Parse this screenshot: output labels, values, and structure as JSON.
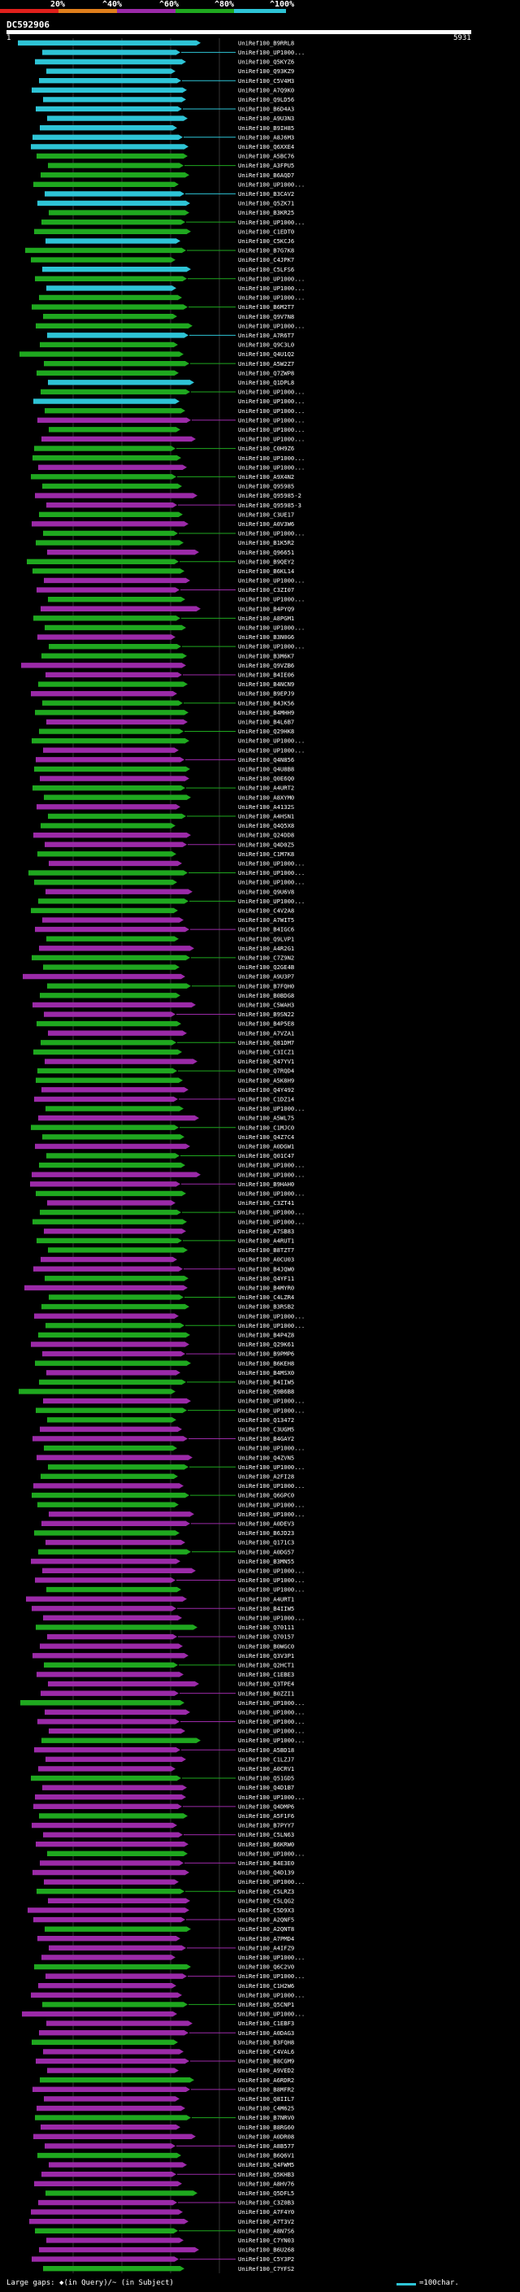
{
  "legend": {
    "labels": [
      "20%",
      "^40%",
      "^60%",
      "^80%",
      "^100%"
    ],
    "colors": [
      "#e0201c",
      "#e07f1c",
      "#9b2aa8",
      "#1fa81f",
      "#2ec4d6"
    ]
  },
  "query": {
    "name": "DC592906",
    "start": "1",
    "end": "5931"
  },
  "hits": [
    {
      "id": "UniRef100_B9RRL8"
    },
    {
      "id": "UniRef100_UP1000..."
    },
    {
      "id": "UniRef100_Q5KYZ6"
    },
    {
      "id": "UniRef100_Q93KZ9"
    },
    {
      "id": "UniRef100_C5V4M3"
    },
    {
      "id": "UniRef100_A7Q9K0"
    },
    {
      "id": "UniRef100_Q9LD56"
    },
    {
      "id": "UniRef100_B6D4A3"
    },
    {
      "id": "UniRef100_A9U3N3"
    },
    {
      "id": "UniRef100_B9IH85"
    },
    {
      "id": "UniRef100_A8J6M3"
    },
    {
      "id": "UniRef100_Q6XXE4"
    },
    {
      "id": "UniRef100_A5BC76"
    },
    {
      "id": "UniRef100_A3FPU5"
    },
    {
      "id": "UniRef100_B6AQD7"
    },
    {
      "id": "UniRef100_UP1000..."
    },
    {
      "id": "UniRef100_B3CAV2"
    },
    {
      "id": "UniRef100_Q5ZK71"
    },
    {
      "id": "UniRef100_B3KR25"
    },
    {
      "id": "UniRef100_UP1000..."
    },
    {
      "id": "UniRef100_C1EDT0"
    },
    {
      "id": "UniRef100_C5KCJ6"
    },
    {
      "id": "UniRef100_B7G7K8"
    },
    {
      "id": "UniRef100_C4JPK7"
    },
    {
      "id": "UniRef100_C5LFS6"
    },
    {
      "id": "UniRef100_UP1000..."
    },
    {
      "id": "UniRef100_UP1000..."
    },
    {
      "id": "UniRef100_UP1000..."
    },
    {
      "id": "UniRef100_B6M2T7"
    },
    {
      "id": "UniRef100_Q9V7N8"
    },
    {
      "id": "UniRef100_UP1000..."
    },
    {
      "id": "UniRef100_A7R6T7"
    },
    {
      "id": "UniRef100_Q9C3L0"
    },
    {
      "id": "UniRef100_Q4U1Q2"
    },
    {
      "id": "UniRef100_A5W2Z7"
    },
    {
      "id": "UniRef100_Q7ZWP8"
    },
    {
      "id": "UniRef100_Q1DPL8"
    },
    {
      "id": "UniRef100_UP1000..."
    },
    {
      "id": "UniRef100_UP1000..."
    },
    {
      "id": "UniRef100_UP1000..."
    },
    {
      "id": "UniRef100_UP1000..."
    },
    {
      "id": "UniRef100_UP1000..."
    },
    {
      "id": "UniRef100_UP1000..."
    },
    {
      "id": "UniRef100_C0H9Z6"
    },
    {
      "id": "UniRef100_UP1000..."
    },
    {
      "id": "UniRef100_UP1000..."
    },
    {
      "id": "UniRef100_A9X4N2"
    },
    {
      "id": "UniRef100_Q95985"
    },
    {
      "id": "UniRef100_Q95985-2"
    },
    {
      "id": "UniRef100_Q95985-3"
    },
    {
      "id": "UniRef100_C3UE17"
    },
    {
      "id": "UniRef100_A0V3W6"
    },
    {
      "id": "UniRef100_UP1000..."
    },
    {
      "id": "UniRef100_B1K5R2"
    },
    {
      "id": "UniRef100_Q96651"
    },
    {
      "id": "UniRef100_B9QEY2"
    },
    {
      "id": "UniRef100_B6KL14"
    },
    {
      "id": "UniRef100_UP1000..."
    },
    {
      "id": "UniRef100_C3ZI07"
    },
    {
      "id": "UniRef100_UP1000..."
    },
    {
      "id": "UniRef100_B4PYQ9"
    },
    {
      "id": "UniRef100_A8PGM1"
    },
    {
      "id": "UniRef100_UP1000..."
    },
    {
      "id": "UniRef100_B3N0G6"
    },
    {
      "id": "UniRef100_UP1000..."
    },
    {
      "id": "UniRef100_B3M6K7"
    },
    {
      "id": "UniRef100_Q9VZB6"
    },
    {
      "id": "UniRef100_B4IE06"
    },
    {
      "id": "UniRef100_B4NCN9"
    },
    {
      "id": "UniRef100_B9EPJ9"
    },
    {
      "id": "UniRef100_B4JK56"
    },
    {
      "id": "UniRef100_B4MHH9"
    },
    {
      "id": "UniRef100_B4L6B7"
    },
    {
      "id": "UniRef100_Q29HK8"
    },
    {
      "id": "UniRef100_UP1000..."
    },
    {
      "id": "UniRef100_UP1000..."
    },
    {
      "id": "UniRef100_Q4N856"
    },
    {
      "id": "UniRef100_Q4U8B8"
    },
    {
      "id": "UniRef100_Q0E6Q0"
    },
    {
      "id": "UniRef100_A4URT2"
    },
    {
      "id": "UniRef100_A8XYM0"
    },
    {
      "id": "UniRef100_A4132S"
    },
    {
      "id": "UniRef100_A4HSN1"
    },
    {
      "id": "UniRef100_Q4Q5X8"
    },
    {
      "id": "UniRef100_Q24DD8"
    },
    {
      "id": "UniRef100_Q4D0Z5"
    },
    {
      "id": "UniRef100_C1M7K8"
    },
    {
      "id": "UniRef100_UP1000..."
    },
    {
      "id": "UniRef100_UP1000..."
    },
    {
      "id": "UniRef100_UP1000..."
    },
    {
      "id": "UniRef100_Q9U6V8"
    },
    {
      "id": "UniRef100_UP1000..."
    },
    {
      "id": "UniRef100_C4V2A8"
    },
    {
      "id": "UniRef100_A7WIT5"
    },
    {
      "id": "UniRef100_B4IGC6"
    },
    {
      "id": "UniRef100_Q9LVP1"
    },
    {
      "id": "UniRef100_A4R2G1"
    },
    {
      "id": "UniRef100_C7Z9N2"
    },
    {
      "id": "UniRef100_Q2GE4B"
    },
    {
      "id": "UniRef100_A9U3P7"
    },
    {
      "id": "UniRef100_B7FQH0"
    },
    {
      "id": "UniRef100_B0BDG8"
    },
    {
      "id": "UniRef100_C5WAH3"
    },
    {
      "id": "UniRef100_B9SN22"
    },
    {
      "id": "UniRef100_B4P5E8"
    },
    {
      "id": "UniRef100_A7VZA1"
    },
    {
      "id": "UniRef100_Q81DM7"
    },
    {
      "id": "UniRef100_C3ICZ1"
    },
    {
      "id": "UniRef100_Q47YV1"
    },
    {
      "id": "UniRef100_Q7RQD4"
    },
    {
      "id": "UniRef100_A5K8H9"
    },
    {
      "id": "UniRef100_Q4Y492"
    },
    {
      "id": "UniRef100_C1DZ14"
    },
    {
      "id": "UniRef100_UP1000..."
    },
    {
      "id": "UniRef100_A5WL75"
    },
    {
      "id": "UniRef100_C1MJC0"
    },
    {
      "id": "UniRef100_Q4Z7C4"
    },
    {
      "id": "UniRef100_A0DGW1"
    },
    {
      "id": "UniRef100_Q01C47"
    },
    {
      "id": "UniRef100_UP1000..."
    },
    {
      "id": "UniRef100_UP1000..."
    },
    {
      "id": "UniRef100_B9HAH0"
    },
    {
      "id": "UniRef100_UP1000..."
    },
    {
      "id": "UniRef100_C3ZT41"
    },
    {
      "id": "UniRef100_UP1000..."
    },
    {
      "id": "UniRef100_UP1000..."
    },
    {
      "id": "UniRef100_A7SB83"
    },
    {
      "id": "UniRef100_A4RUT1"
    },
    {
      "id": "UniRef100_B8TZT7"
    },
    {
      "id": "UniRef100_A0CU03"
    },
    {
      "id": "UniRef100_B4JQW0"
    },
    {
      "id": "UniRef100_Q4YF11"
    },
    {
      "id": "UniRef100_B4MYR0"
    },
    {
      "id": "UniRef100_C4LZR4"
    },
    {
      "id": "UniRef100_B3RSB2"
    },
    {
      "id": "UniRef100_UP1000..."
    },
    {
      "id": "UniRef100_UP1000..."
    },
    {
      "id": "UniRef100_B4P4Z8"
    },
    {
      "id": "UniRef100_Q29K61"
    },
    {
      "id": "UniRef100_B9PMP6"
    },
    {
      "id": "UniRef100_B6KEH8"
    },
    {
      "id": "UniRef100_B4MSX0"
    },
    {
      "id": "UniRef100_B4IIW5"
    },
    {
      "id": "UniRef100_Q9B6B8"
    },
    {
      "id": "UniRef100_UP1000..."
    },
    {
      "id": "UniRef100_UP1000..."
    },
    {
      "id": "UniRef100_Q13472"
    },
    {
      "id": "UniRef100_C3UGM5"
    },
    {
      "id": "UniRef100_B4GAY2"
    },
    {
      "id": "UniRef100_UP1000..."
    },
    {
      "id": "UniRef100_Q4ZVN5"
    },
    {
      "id": "UniRef100_UP1000..."
    },
    {
      "id": "UniRef100_A2FI28"
    },
    {
      "id": "UniRef100_UP1000..."
    },
    {
      "id": "UniRef100_Q6GPC0"
    },
    {
      "id": "UniRef100_UP1000..."
    },
    {
      "id": "UniRef100_UP1000..."
    },
    {
      "id": "UniRef100_A0DEV3"
    },
    {
      "id": "UniRef100_B6JD23"
    },
    {
      "id": "UniRef100_Q171C3"
    },
    {
      "id": "UniRef100_A0DG57"
    },
    {
      "id": "UniRef100_B3MN55"
    },
    {
      "id": "UniRef100_UP1000..."
    },
    {
      "id": "UniRef100_UP1000..."
    },
    {
      "id": "UniRef100_UP1000..."
    },
    {
      "id": "UniRef100_A4URT1"
    },
    {
      "id": "UniRef100_B4IIW5"
    },
    {
      "id": "UniRef100_UP1000..."
    },
    {
      "id": "UniRef100_Q70111"
    },
    {
      "id": "UniRef100_Q70157"
    },
    {
      "id": "UniRef100_B0WGC0"
    },
    {
      "id": "UniRef100_Q3V3P1"
    },
    {
      "id": "UniRef100_Q2HCT1"
    },
    {
      "id": "UniRef100_C1EBE3"
    },
    {
      "id": "UniRef100_Q3TPE4"
    },
    {
      "id": "UniRef100_B0ZZI1"
    },
    {
      "id": "UniRef100_UP1000..."
    },
    {
      "id": "UniRef100_UP1000..."
    },
    {
      "id": "UniRef100_UP1000..."
    },
    {
      "id": "UniRef100_UP1000..."
    },
    {
      "id": "UniRef100_UP1000..."
    },
    {
      "id": "UniRef100_A5BD18"
    },
    {
      "id": "UniRef100_C1LZJ7"
    },
    {
      "id": "UniRef100_A0CRV1"
    },
    {
      "id": "UniRef100_Q51GD5"
    },
    {
      "id": "UniRef100_Q4D1B7"
    },
    {
      "id": "UniRef100_UP1000..."
    },
    {
      "id": "UniRef100_Q4DMP6"
    },
    {
      "id": "UniRef100_A5F1F6"
    },
    {
      "id": "UniRef100_B7PYY7"
    },
    {
      "id": "UniRef100_C5LN63"
    },
    {
      "id": "UniRef100_B6KRW0"
    },
    {
      "id": "UniRef100_UP1000..."
    },
    {
      "id": "UniRef100_B4E3E0"
    },
    {
      "id": "UniRef100_Q4D139"
    },
    {
      "id": "UniRef100_UP1000..."
    },
    {
      "id": "UniRef100_C5LRZ3"
    },
    {
      "id": "UniRef100_C5LQG2"
    },
    {
      "id": "UniRef100_C5D9X3"
    },
    {
      "id": "UniRef100_A2QNF5"
    },
    {
      "id": "UniRef100_A2QNT8"
    },
    {
      "id": "UniRef100_A7PMD4"
    },
    {
      "id": "UniRef100_A4IFZ9"
    },
    {
      "id": "UniRef100_UP1000..."
    },
    {
      "id": "UniRef100_Q6C2V0"
    },
    {
      "id": "UniRef100_UP1000..."
    },
    {
      "id": "UniRef100_C1H2W6"
    },
    {
      "id": "UniRef100_UP1000..."
    },
    {
      "id": "UniRef100_Q5CNP1"
    },
    {
      "id": "UniRef100_UP1000..."
    },
    {
      "id": "UniRef100_C1EBF3"
    },
    {
      "id": "UniRef100_A0DAG3"
    },
    {
      "id": "UniRef100_B3FQH8"
    },
    {
      "id": "UniRef100_C4VAL6"
    },
    {
      "id": "UniRef100_B8CGM9"
    },
    {
      "id": "UniRef100_A9VED2"
    },
    {
      "id": "UniRef100_A6RDR2"
    },
    {
      "id": "UniRef100_B8MFR2"
    },
    {
      "id": "UniRef100_Q8IIL7"
    },
    {
      "id": "UniRef100_C4M625"
    },
    {
      "id": "UniRef100_B7NRV0"
    },
    {
      "id": "UniRef100_B8RG60"
    },
    {
      "id": "UniRef100_A0DR08"
    },
    {
      "id": "UniRef100_A8B577"
    },
    {
      "id": "UniRef100_B6Q6V1"
    },
    {
      "id": "UniRef100_Q4FWM5"
    },
    {
      "id": "UniRef100_Q5KHB3"
    },
    {
      "id": "UniRef100_A8HV76"
    },
    {
      "id": "UniRef100_Q5DFL5"
    },
    {
      "id": "UniRef100_C3Z0B3"
    },
    {
      "id": "UniRef100_A7F4Y0"
    },
    {
      "id": "UniRef100_A7T3V2"
    },
    {
      "id": "UniRef100_A8N7S6"
    },
    {
      "id": "UniRef100_C7YN03"
    },
    {
      "id": "UniRef100_B6U268"
    },
    {
      "id": "UniRef100_C5Y3P2"
    },
    {
      "id": "UniRef100_C7YFS2"
    }
  ],
  "footer": {
    "text": "Large gaps: ◆(in Query)/~ (in Subject)",
    "scale_label": "=100char."
  }
}
